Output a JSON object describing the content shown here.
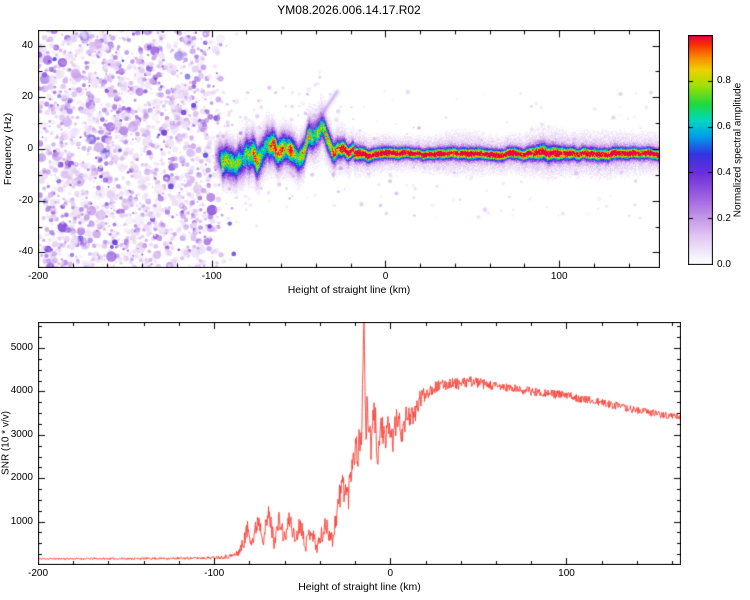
{
  "figure": {
    "background": "#ffffff",
    "frame_color": "#000000"
  },
  "chart_data": [
    {
      "id": "spectrogram",
      "type": "heatmap",
      "title": "YM08.2026.006.14.17.R02",
      "xlabel": "Height of straight line (km)",
      "ylabel": "Frequency (Hz)",
      "xlim": [
        -200,
        158
      ],
      "ylim": [
        -46,
        46
      ],
      "xticks": [
        -200,
        -100,
        0,
        100
      ],
      "yticks": [
        -40,
        -20,
        0,
        20,
        40
      ],
      "xminor_step": 20,
      "yminor_step": 10,
      "grid": false,
      "seed": 7,
      "colormap_stops": [
        [
          0.0,
          "#ffffff"
        ],
        [
          0.05,
          "#f3eafa"
        ],
        [
          0.12,
          "#e2c8f2"
        ],
        [
          0.2,
          "#c49ae8"
        ],
        [
          0.3,
          "#9b5fe0"
        ],
        [
          0.4,
          "#6a2fd8"
        ],
        [
          0.48,
          "#3333e0"
        ],
        [
          0.56,
          "#00a0e8"
        ],
        [
          0.63,
          "#00d8c0"
        ],
        [
          0.7,
          "#20d840"
        ],
        [
          0.78,
          "#a0e000"
        ],
        [
          0.85,
          "#f0d000"
        ],
        [
          0.9,
          "#f89000"
        ],
        [
          0.96,
          "#f83000"
        ],
        [
          1.0,
          "#e4004c"
        ]
      ],
      "colorbar": {
        "label": "Normalized spectral amplitude",
        "ticks": [
          "0.0",
          "0.2",
          "0.4",
          "0.6",
          "0.8"
        ],
        "range": [
          0,
          1
        ]
      },
      "noise_region": {
        "x_range": [
          -200,
          -93
        ],
        "value_range": [
          0.05,
          0.5
        ],
        "description": "dense purple speckle noise below -93 km"
      },
      "band_fields": [
        "x_km",
        "center_hz",
        "halfwidth_hz",
        "peak_value",
        "glow_halfwidth_hz"
      ],
      "band": [
        [
          -97,
          -5,
          4.5,
          0.45,
          8
        ],
        [
          -92,
          -2,
          5.5,
          0.6,
          9
        ],
        [
          -86,
          -6,
          5,
          0.62,
          9
        ],
        [
          -80,
          1,
          5.5,
          0.58,
          10
        ],
        [
          -74,
          -5,
          5.5,
          0.66,
          10
        ],
        [
          -68,
          2,
          5,
          0.62,
          10
        ],
        [
          -62,
          -3,
          5,
          0.7,
          9
        ],
        [
          -56,
          1,
          4.5,
          0.72,
          9
        ],
        [
          -50,
          -2,
          4.5,
          0.68,
          9
        ],
        [
          -45,
          2,
          4.5,
          0.74,
          9
        ],
        [
          -41,
          6,
          4.5,
          0.7,
          10
        ],
        [
          -37,
          9,
          4,
          0.6,
          10
        ],
        [
          -33,
          4,
          4,
          0.78,
          9
        ],
        [
          -29,
          0,
          3.5,
          0.85,
          8
        ],
        [
          -25,
          -2,
          3,
          0.92,
          8
        ],
        [
          -20,
          -2,
          2.6,
          0.9,
          7
        ],
        [
          -15,
          -2,
          2.4,
          0.96,
          7
        ],
        [
          -10,
          -2.5,
          2.2,
          0.97,
          6.5
        ],
        [
          -5,
          -2,
          2,
          0.97,
          6
        ],
        [
          0,
          -2,
          2,
          0.98,
          6
        ],
        [
          10,
          -2,
          1.9,
          0.97,
          5.5
        ],
        [
          20,
          -2,
          1.8,
          0.97,
          5.5
        ],
        [
          30,
          -2,
          1.9,
          0.96,
          6
        ],
        [
          40,
          -2,
          2,
          0.97,
          7
        ],
        [
          50,
          -2,
          2,
          0.96,
          7
        ],
        [
          60,
          -2,
          1.9,
          0.96,
          6
        ],
        [
          70,
          -2,
          1.9,
          0.97,
          6
        ],
        [
          80,
          -2,
          2,
          0.97,
          6.5
        ],
        [
          90,
          -1.5,
          2.8,
          0.95,
          8
        ],
        [
          96,
          -2,
          2.6,
          0.97,
          8
        ],
        [
          105,
          -2,
          2.2,
          0.96,
          7
        ],
        [
          115,
          -2,
          2.1,
          0.96,
          7
        ],
        [
          125,
          -2,
          2.2,
          0.96,
          7.5
        ],
        [
          135,
          -2,
          2,
          0.97,
          7
        ],
        [
          145,
          -2,
          1.9,
          0.96,
          6.5
        ],
        [
          158,
          -2,
          1.9,
          0.97,
          6.5
        ]
      ],
      "streak_fields": [
        "x1_km",
        "f1_hz",
        "x2_km",
        "f2_hz",
        "width",
        "value"
      ],
      "streaks": [
        [
          -46,
          4,
          -28,
          22,
          2.5,
          0.28
        ]
      ]
    },
    {
      "id": "snr",
      "type": "line",
      "xlabel": "Height of straight line (km)",
      "ylabel": "SNR (10 * v/v)",
      "xlim": [
        -200,
        165
      ],
      "ylim": [
        0,
        5600
      ],
      "xticks": [
        -200,
        -100,
        0,
        100
      ],
      "yticks": [
        1000,
        2000,
        3000,
        4000,
        5000
      ],
      "xminor_step": 20,
      "yminor_step": 250,
      "grid": false,
      "seed": 11,
      "line_color": "#f74238",
      "envelope_fields": [
        "x_km",
        "snr",
        "noise_amplitude"
      ],
      "envelope": [
        [
          -200,
          140,
          30
        ],
        [
          -185,
          140,
          30
        ],
        [
          -170,
          142,
          32
        ],
        [
          -155,
          142,
          32
        ],
        [
          -140,
          145,
          34
        ],
        [
          -125,
          148,
          36
        ],
        [
          -112,
          152,
          40
        ],
        [
          -102,
          160,
          48
        ],
        [
          -96,
          175,
          60
        ],
        [
          -91,
          195,
          80
        ],
        [
          -87,
          240,
          110
        ],
        [
          -84,
          420,
          220
        ],
        [
          -81,
          800,
          330
        ],
        [
          -78,
          520,
          260
        ],
        [
          -75,
          1050,
          340
        ],
        [
          -72,
          600,
          280
        ],
        [
          -69,
          1150,
          350
        ],
        [
          -66,
          520,
          260
        ],
        [
          -63,
          1000,
          330
        ],
        [
          -60,
          560,
          270
        ],
        [
          -57,
          1050,
          340
        ],
        [
          -54,
          520,
          260
        ],
        [
          -51,
          950,
          320
        ],
        [
          -48,
          430,
          230
        ],
        [
          -45,
          820,
          330
        ],
        [
          -42,
          380,
          220
        ],
        [
          -39,
          640,
          300
        ],
        [
          -36,
          900,
          380
        ],
        [
          -33,
          520,
          300
        ],
        [
          -30,
          1250,
          480
        ],
        [
          -27,
          1850,
          560
        ],
        [
          -24,
          1500,
          520
        ],
        [
          -21,
          2600,
          650
        ],
        [
          -18,
          2600,
          600
        ],
        [
          -16,
          3200,
          700
        ],
        [
          -15,
          5900,
          150
        ],
        [
          -14,
          2800,
          600
        ],
        [
          -13,
          3600,
          700
        ],
        [
          -11,
          2600,
          600
        ],
        [
          -9,
          3500,
          600
        ],
        [
          -7,
          2400,
          550
        ],
        [
          -5,
          3300,
          600
        ],
        [
          -3,
          2600,
          520
        ],
        [
          -1,
          3200,
          500
        ],
        [
          1,
          2800,
          480
        ],
        [
          4,
          3300,
          450
        ],
        [
          7,
          3000,
          420
        ],
        [
          10,
          3500,
          400
        ],
        [
          13,
          3300,
          370
        ],
        [
          16,
          3700,
          330
        ],
        [
          19,
          3900,
          280
        ],
        [
          22,
          4000,
          230
        ],
        [
          26,
          4080,
          200
        ],
        [
          30,
          4120,
          190
        ],
        [
          35,
          4180,
          180
        ],
        [
          40,
          4140,
          180
        ],
        [
          45,
          4220,
          170
        ],
        [
          50,
          4180,
          170
        ],
        [
          56,
          4120,
          160
        ],
        [
          62,
          4090,
          160
        ],
        [
          70,
          4040,
          150
        ],
        [
          78,
          4000,
          150
        ],
        [
          86,
          3960,
          140
        ],
        [
          94,
          3920,
          140
        ],
        [
          102,
          3880,
          135
        ],
        [
          110,
          3800,
          135
        ],
        [
          118,
          3740,
          130
        ],
        [
          126,
          3680,
          130
        ],
        [
          134,
          3600,
          125
        ],
        [
          142,
          3540,
          120
        ],
        [
          150,
          3480,
          120
        ],
        [
          158,
          3430,
          115
        ],
        [
          165,
          3400,
          115
        ]
      ]
    }
  ]
}
